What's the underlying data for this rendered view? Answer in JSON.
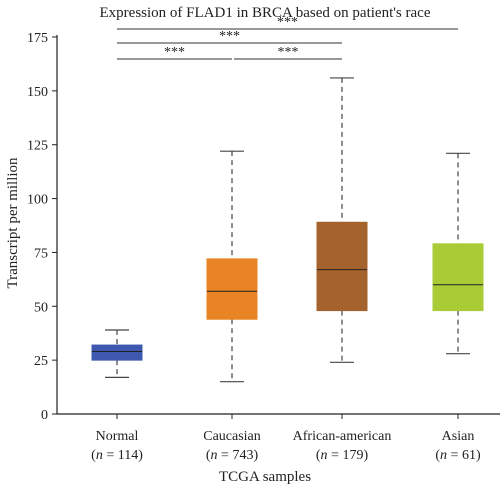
{
  "chart_data": {
    "type": "boxplot",
    "title": "Expression of FLAD1 in BRCA based on patient's race",
    "xlabel": "TCGA samples",
    "ylabel": "Transcript per million",
    "ylim": [
      0,
      175
    ],
    "yticks": [
      0,
      25,
      50,
      75,
      100,
      125,
      150,
      175
    ],
    "grid": false,
    "groups": [
      {
        "label": "Normal",
        "n_prefix": "(",
        "n_var": "n",
        "n_text": " = 114)",
        "min": 17,
        "q1": 25,
        "median": 29,
        "q3": 32,
        "max": 39,
        "color": "#3f58b0"
      },
      {
        "label": "Caucasian",
        "n_prefix": "(",
        "n_var": "n",
        "n_text": " = 743)",
        "min": 15,
        "q1": 44,
        "median": 57,
        "q3": 72,
        "max": 122,
        "color": "#e88424"
      },
      {
        "label": "African-american",
        "n_prefix": "(",
        "n_var": "n",
        "n_text": " = 179)",
        "min": 24,
        "q1": 48,
        "median": 67,
        "q3": 89,
        "max": 156,
        "color": "#a4622c"
      },
      {
        "label": "Asian",
        "n_prefix": "(",
        "n_var": "n",
        "n_text": " = 61)",
        "min": 28,
        "q1": 48,
        "median": 60,
        "q3": 79,
        "max": 121,
        "color": "#a9cc36"
      }
    ],
    "significance": [
      {
        "from": 0,
        "to": 3,
        "label": "***"
      },
      {
        "from": 0,
        "to": 2,
        "label": "***"
      },
      {
        "from": 0,
        "to": 1,
        "label": "***"
      },
      {
        "from": 1,
        "to": 2,
        "label": "***"
      }
    ]
  }
}
